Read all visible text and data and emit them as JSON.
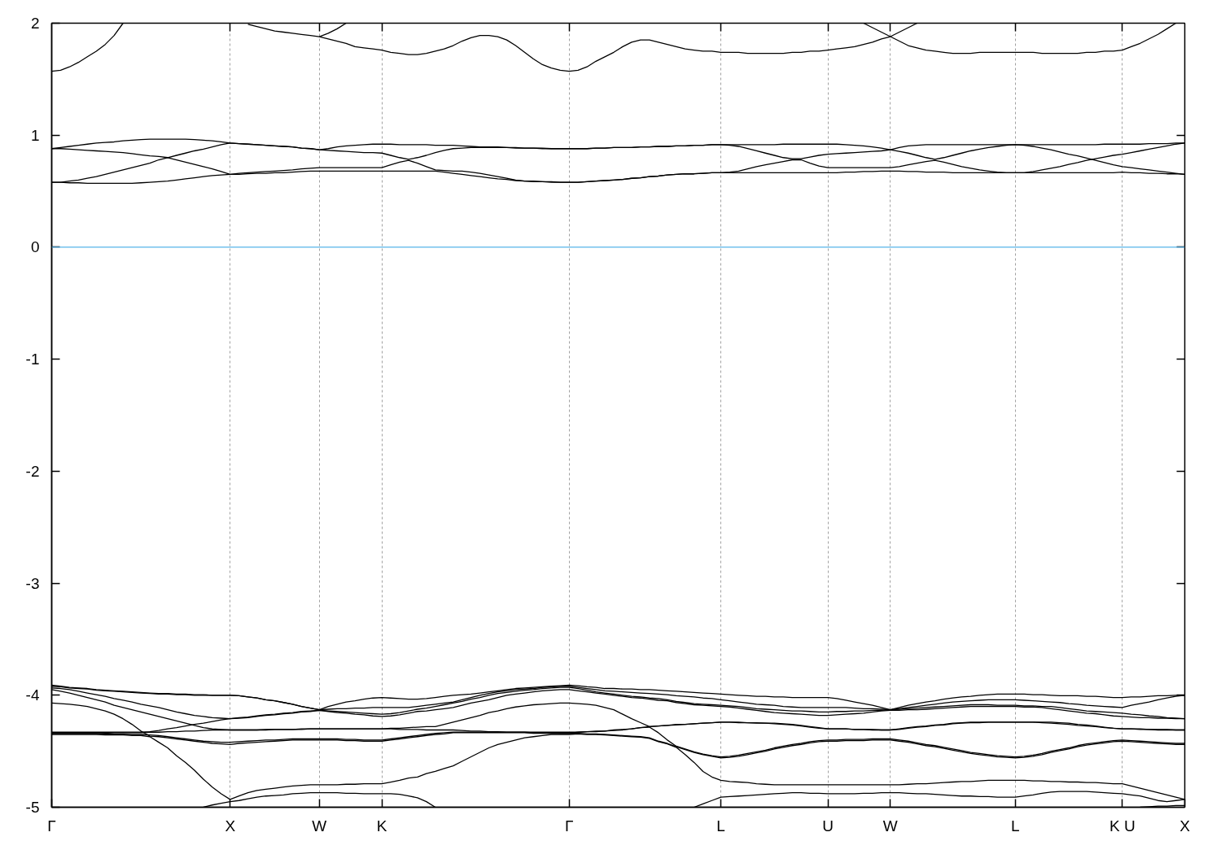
{
  "chart_data": {
    "type": "line",
    "categories": [
      "Γ",
      null,
      null,
      null,
      null,
      null,
      null,
      null,
      null,
      null,
      null,
      null,
      null,
      null,
      null,
      null,
      null,
      null,
      null,
      null,
      "X",
      null,
      null,
      null,
      null,
      null,
      null,
      null,
      null,
      null,
      "W",
      null,
      null,
      null,
      null,
      null,
      null,
      "K",
      null,
      null,
      null,
      null,
      null,
      null,
      null,
      null,
      null,
      null,
      null,
      null,
      null,
      null,
      null,
      null,
      null,
      null,
      null,
      null,
      "Γ",
      null,
      null,
      null,
      null,
      null,
      null,
      null,
      null,
      null,
      null,
      null,
      null,
      null,
      null,
      null,
      null,
      "L",
      null,
      null,
      null,
      null,
      null,
      null,
      null,
      null,
      null,
      null,
      null,
      "U",
      null,
      null,
      null,
      null,
      null,
      null,
      "W",
      null,
      null,
      null,
      null,
      null,
      null,
      null,
      null,
      null,
      null,
      null,
      null,
      null,
      "L",
      null,
      null,
      null,
      null,
      null,
      null,
      null,
      null,
      null,
      null,
      null,
      "K U",
      null,
      null,
      null,
      null,
      null,
      null,
      "X"
    ],
    "ylim": [
      -5,
      2
    ],
    "yticks": [
      -5,
      -4,
      -3,
      -2,
      -1,
      0,
      1,
      2
    ],
    "grid": "x",
    "ref_lines": [
      {
        "axis": "y",
        "value": 0,
        "color": "#56b4e9"
      }
    ],
    "series": [
      {
        "color": "#000000",
        "values": [
          1.57,
          1.58,
          1.61,
          1.65,
          1.7,
          1.75,
          1.81,
          1.89,
          2.0,
          null,
          null,
          null,
          null,
          null,
          null,
          null,
          null,
          null,
          null,
          null,
          null,
          null,
          1.99,
          1.97,
          1.95,
          1.93,
          1.92,
          1.91,
          1.9,
          1.89,
          1.88,
          1.86,
          1.84,
          1.82,
          1.79,
          1.78,
          1.77,
          1.76,
          1.74,
          1.73,
          1.72,
          1.72,
          1.73,
          1.75,
          1.77,
          1.8,
          1.84,
          1.87,
          1.89,
          1.89,
          1.88,
          1.85,
          1.8,
          1.74,
          1.68,
          1.63,
          1.6,
          1.58,
          1.57,
          1.58,
          1.61,
          1.66,
          1.7,
          1.74,
          1.79,
          1.83,
          1.85,
          1.85,
          1.83,
          1.81,
          1.79,
          1.77,
          1.76,
          1.75,
          1.75,
          1.74,
          1.74,
          1.74,
          1.73,
          1.73,
          1.73,
          1.73,
          1.73,
          1.74,
          1.74,
          1.75,
          1.75,
          1.76,
          1.77,
          1.78,
          1.79,
          1.81,
          1.83,
          1.86,
          1.88,
          1.84,
          1.8,
          1.78,
          1.76,
          1.75,
          1.74,
          1.73,
          1.73,
          1.73,
          1.74,
          1.74,
          1.74,
          1.74,
          1.74,
          1.74,
          1.74,
          1.73,
          1.73,
          1.73,
          1.73,
          1.73,
          1.74,
          1.74,
          1.75,
          1.75,
          1.76,
          1.79,
          1.82,
          1.86,
          1.9,
          1.95,
          2.0,
          null
        ]
      },
      {
        "color": "#000000",
        "values": [
          null,
          null,
          null,
          null,
          null,
          null,
          null,
          null,
          null,
          null,
          null,
          null,
          null,
          null,
          null,
          null,
          null,
          null,
          null,
          null,
          null,
          null,
          null,
          null,
          null,
          null,
          null,
          null,
          null,
          null,
          1.88,
          1.91,
          1.95,
          2.0,
          null,
          null,
          null,
          null,
          null,
          null,
          null,
          null,
          null,
          null,
          null,
          null,
          null,
          null,
          null,
          null,
          null,
          null,
          null,
          null,
          null,
          null,
          null,
          null,
          null,
          null,
          null,
          null,
          null,
          null,
          null,
          null,
          null,
          null,
          null,
          null,
          null,
          null,
          null,
          null,
          null,
          null,
          null,
          null,
          null,
          null,
          null,
          null,
          null,
          null,
          null,
          null,
          null,
          null,
          null,
          null,
          null,
          2.0,
          1.96,
          1.92,
          1.88,
          1.92,
          1.96,
          2.0,
          null,
          null,
          null,
          null,
          null,
          null,
          null,
          null,
          null,
          null,
          null,
          null,
          null,
          null,
          null,
          null,
          null,
          null,
          null,
          null,
          null,
          null,
          null,
          null,
          null,
          null,
          null,
          null,
          null,
          null
        ]
      },
      {
        "color": "#000000",
        "values": [
          0.88,
          0.89,
          0.9,
          0.91,
          0.92,
          0.93,
          0.935,
          0.94,
          0.95,
          0.955,
          0.96,
          0.965,
          0.965,
          0.965,
          0.965,
          0.965,
          0.96,
          0.955,
          0.95,
          0.94,
          0.93,
          0.925,
          0.92,
          0.915,
          0.91,
          0.905,
          0.9,
          0.895,
          0.885,
          0.88,
          0.87,
          0.88,
          0.895,
          0.905,
          0.91,
          0.915,
          0.92,
          0.92,
          0.92,
          0.915,
          0.915,
          0.915,
          0.915,
          0.91,
          0.91,
          0.91,
          0.905,
          0.9,
          0.895,
          0.895,
          0.895,
          0.89,
          0.89,
          0.885,
          0.885,
          0.885,
          0.88,
          0.88,
          0.88,
          0.88,
          0.88,
          0.885,
          0.885,
          0.89,
          0.89,
          0.89,
          0.895,
          0.895,
          0.9,
          0.9,
          0.905,
          0.905,
          0.91,
          0.91,
          0.915,
          0.915,
          0.915,
          0.915,
          0.915,
          0.915,
          0.915,
          0.915,
          0.92,
          0.92,
          0.92,
          0.92,
          0.92,
          0.92,
          0.92,
          0.915,
          0.91,
          0.905,
          0.895,
          0.885,
          0.87,
          0.89,
          0.905,
          0.91,
          0.915,
          0.915,
          0.915,
          0.915,
          0.915,
          0.915,
          0.915,
          0.915,
          0.915,
          0.915,
          0.915,
          0.915,
          0.915,
          0.915,
          0.915,
          0.915,
          0.915,
          0.915,
          0.915,
          0.915,
          0.92,
          0.92,
          0.92,
          0.92,
          0.92,
          0.925,
          0.925,
          0.925,
          0.93,
          0.93
        ]
      },
      {
        "color": "#000000",
        "values": [
          0.88,
          0.88,
          0.875,
          0.87,
          0.865,
          0.86,
          0.855,
          0.85,
          0.845,
          0.835,
          0.825,
          0.815,
          0.81,
          0.8,
          0.82,
          0.84,
          0.86,
          0.875,
          0.895,
          0.915,
          0.93,
          0.925,
          0.92,
          0.915,
          0.91,
          0.905,
          0.9,
          0.895,
          0.885,
          0.88,
          0.87,
          0.865,
          0.86,
          0.855,
          0.85,
          0.845,
          0.845,
          0.84,
          0.82,
          0.8,
          0.785,
          0.8,
          0.82,
          0.845,
          0.865,
          0.88,
          0.885,
          0.89,
          0.89,
          0.89,
          0.89,
          0.89,
          0.885,
          0.885,
          0.885,
          0.88,
          0.88,
          0.88,
          0.88,
          0.88,
          0.88,
          0.885,
          0.885,
          0.89,
          0.89,
          0.89,
          0.895,
          0.895,
          0.9,
          0.9,
          0.905,
          0.905,
          0.91,
          0.91,
          0.915,
          0.915,
          0.91,
          0.9,
          0.88,
          0.86,
          0.84,
          0.82,
          0.8,
          0.79,
          0.79,
          0.805,
          0.82,
          0.83,
          0.835,
          0.84,
          0.845,
          0.85,
          0.855,
          0.86,
          0.87,
          0.855,
          0.84,
          0.82,
          0.8,
          0.785,
          0.8,
          0.82,
          0.84,
          0.86,
          0.875,
          0.89,
          0.9,
          0.91,
          0.915,
          0.91,
          0.9,
          0.885,
          0.87,
          0.85,
          0.83,
          0.815,
          0.795,
          0.775,
          0.755,
          0.735,
          0.72,
          0.71,
          0.7,
          0.69,
          0.68,
          0.67,
          0.66,
          0.65
        ]
      },
      {
        "color": "#000000",
        "values": [
          0.58,
          0.58,
          0.59,
          0.6,
          0.615,
          0.63,
          0.65,
          0.67,
          0.69,
          0.71,
          0.73,
          0.75,
          0.78,
          0.8,
          0.78,
          0.76,
          0.74,
          0.72,
          0.7,
          0.675,
          0.65,
          0.66,
          0.665,
          0.67,
          0.675,
          0.68,
          0.685,
          0.69,
          0.7,
          0.705,
          0.71,
          0.71,
          0.71,
          0.71,
          0.71,
          0.71,
          0.71,
          0.71,
          0.735,
          0.76,
          0.775,
          0.75,
          0.72,
          0.69,
          0.685,
          0.68,
          0.68,
          0.67,
          0.66,
          0.645,
          0.63,
          0.615,
          0.6,
          0.59,
          0.59,
          0.585,
          0.585,
          0.58,
          0.58,
          0.58,
          0.585,
          0.59,
          0.595,
          0.6,
          0.605,
          0.615,
          0.62,
          0.63,
          0.635,
          0.645,
          0.65,
          0.655,
          0.655,
          0.66,
          0.665,
          0.665,
          0.67,
          0.68,
          0.7,
          0.72,
          0.735,
          0.75,
          0.765,
          0.78,
          0.78,
          0.75,
          0.725,
          0.71,
          0.71,
          0.71,
          0.71,
          0.71,
          0.71,
          0.71,
          0.71,
          0.72,
          0.735,
          0.75,
          0.765,
          0.775,
          0.76,
          0.74,
          0.72,
          0.705,
          0.69,
          0.68,
          0.67,
          0.665,
          0.665,
          0.665,
          0.675,
          0.69,
          0.705,
          0.72,
          0.74,
          0.755,
          0.775,
          0.79,
          0.805,
          0.82,
          0.83,
          0.845,
          0.86,
          0.875,
          0.89,
          0.905,
          0.92,
          0.93
        ]
      },
      {
        "color": "#000000",
        "values": [
          0.58,
          0.58,
          0.575,
          0.575,
          0.57,
          0.57,
          0.57,
          0.57,
          0.57,
          0.57,
          0.575,
          0.58,
          0.585,
          0.59,
          0.6,
          0.61,
          0.62,
          0.63,
          0.64,
          0.645,
          0.65,
          0.65,
          0.655,
          0.66,
          0.66,
          0.665,
          0.665,
          0.67,
          0.675,
          0.68,
          0.68,
          0.68,
          0.68,
          0.68,
          0.68,
          0.68,
          0.68,
          0.68,
          0.68,
          0.68,
          0.68,
          0.68,
          0.68,
          0.68,
          0.67,
          0.66,
          0.65,
          0.64,
          0.63,
          0.62,
          0.61,
          0.605,
          0.595,
          0.59,
          0.585,
          0.585,
          0.58,
          0.58,
          0.58,
          0.58,
          0.585,
          0.59,
          0.595,
          0.6,
          0.605,
          0.615,
          0.62,
          0.63,
          0.635,
          0.645,
          0.65,
          0.655,
          0.655,
          0.66,
          0.665,
          0.665,
          0.665,
          0.665,
          0.665,
          0.665,
          0.665,
          0.665,
          0.665,
          0.665,
          0.665,
          0.665,
          0.665,
          0.665,
          0.665,
          0.67,
          0.67,
          0.675,
          0.675,
          0.68,
          0.68,
          0.68,
          0.675,
          0.675,
          0.67,
          0.67,
          0.67,
          0.665,
          0.665,
          0.665,
          0.665,
          0.665,
          0.665,
          0.665,
          0.665,
          0.665,
          0.665,
          0.665,
          0.665,
          0.665,
          0.665,
          0.665,
          0.665,
          0.665,
          0.665,
          0.665,
          0.67,
          0.665,
          0.665,
          0.66,
          0.66,
          0.655,
          0.655,
          0.65
        ]
      },
      {
        "color": "#000000",
        "values": [
          -3.91,
          -3.92,
          -3.93,
          -3.935,
          -3.94,
          -3.95,
          -3.955,
          -3.96,
          -3.965,
          -3.97,
          -3.975,
          -3.98,
          -3.985,
          -3.985,
          -3.99,
          -3.99,
          -3.995,
          -3.995,
          -4.0,
          -4.0,
          -4.0,
          -4.005,
          -4.015,
          -4.025,
          -4.04,
          -4.05,
          -4.065,
          -4.08,
          -4.1,
          -4.115,
          -4.13,
          -4.1,
          -4.08,
          -4.06,
          -4.05,
          -4.035,
          -4.025,
          -4.02,
          -4.025,
          -4.03,
          -4.035,
          -4.035,
          -4.03,
          -4.02,
          -4.01,
          -4.0,
          -3.995,
          -3.99,
          -3.98,
          -3.97,
          -3.96,
          -3.95,
          -3.94,
          -3.935,
          -3.93,
          -3.925,
          -3.92,
          -3.915,
          -3.91,
          -3.915,
          -3.925,
          -3.93,
          -3.94,
          -3.94,
          -3.945,
          -3.945,
          -3.95,
          -3.95,
          -3.955,
          -3.96,
          -3.965,
          -3.97,
          -3.975,
          -3.98,
          -3.985,
          -3.99,
          -3.995,
          -4.0,
          -4.005,
          -4.01,
          -4.01,
          -4.015,
          -4.015,
          -4.02,
          -4.02,
          -4.02,
          -4.02,
          -4.02,
          -4.03,
          -4.045,
          -4.06,
          -4.075,
          -4.09,
          -4.11,
          -4.13,
          -4.11,
          -4.09,
          -4.075,
          -4.06,
          -4.05,
          -4.035,
          -4.025,
          -4.015,
          -4.01,
          -4.0,
          -3.995,
          -3.99,
          -3.99,
          -3.99,
          -3.99,
          -3.995,
          -3.995,
          -4.0,
          -4.005,
          -4.005,
          -4.005,
          -4.01,
          -4.01,
          -4.015,
          -4.02,
          -4.02,
          -4.015,
          -4.015,
          -4.01,
          -4.005,
          -4.005,
          -4.0,
          -4.0
        ]
      },
      {
        "color": "#000000",
        "values": [
          -3.92,
          -3.925,
          -3.935,
          -3.94,
          -3.945,
          -3.955,
          -3.96,
          -3.965,
          -3.97,
          -3.975,
          -3.98,
          -3.985,
          -3.99,
          -3.99,
          -3.995,
          -3.995,
          -4.0,
          -4.0,
          -4.0,
          -4.0,
          -4.0,
          -4.005,
          -4.015,
          -4.025,
          -4.04,
          -4.05,
          -4.065,
          -4.08,
          -4.1,
          -4.115,
          -4.13,
          -4.125,
          -4.12,
          -4.12,
          -4.115,
          -4.115,
          -4.11,
          -4.11,
          -4.11,
          -4.11,
          -4.11,
          -4.1,
          -4.09,
          -4.08,
          -4.07,
          -4.06,
          -4.04,
          -4.02,
          -4.0,
          -3.985,
          -3.97,
          -3.96,
          -3.95,
          -3.945,
          -3.94,
          -3.93,
          -3.925,
          -3.92,
          -3.92,
          -3.93,
          -3.94,
          -3.95,
          -3.96,
          -3.965,
          -3.97,
          -3.975,
          -3.98,
          -3.985,
          -3.99,
          -3.995,
          -4.005,
          -4.01,
          -4.015,
          -4.025,
          -4.03,
          -4.04,
          -4.05,
          -4.06,
          -4.07,
          -4.08,
          -4.085,
          -4.09,
          -4.1,
          -4.105,
          -4.11,
          -4.11,
          -4.11,
          -4.11,
          -4.11,
          -4.11,
          -4.115,
          -4.12,
          -4.12,
          -4.125,
          -4.13,
          -4.125,
          -4.12,
          -4.115,
          -4.11,
          -4.105,
          -4.1,
          -4.095,
          -4.09,
          -4.085,
          -4.085,
          -4.085,
          -4.09,
          -4.09,
          -4.09,
          -4.095,
          -4.095,
          -4.1,
          -4.1,
          -4.11,
          -4.12,
          -4.13,
          -4.14,
          -4.145,
          -4.15,
          -4.155,
          -4.16,
          -4.17,
          -4.175,
          -4.185,
          -4.19,
          -4.2,
          -4.205,
          -4.21
        ]
      },
      {
        "color": "#000000",
        "values": [
          -3.935,
          -3.94,
          -3.95,
          -3.965,
          -3.98,
          -3.995,
          -4.01,
          -4.03,
          -4.045,
          -4.06,
          -4.08,
          -4.095,
          -4.11,
          -4.13,
          -4.15,
          -4.165,
          -4.18,
          -4.19,
          -4.2,
          -4.205,
          -4.21,
          -4.2,
          -4.195,
          -4.185,
          -4.175,
          -4.17,
          -4.16,
          -4.155,
          -4.145,
          -4.14,
          -4.135,
          -4.14,
          -4.145,
          -4.15,
          -4.155,
          -4.16,
          -4.165,
          -4.17,
          -4.165,
          -4.155,
          -4.14,
          -4.125,
          -4.115,
          -4.1,
          -4.085,
          -4.07,
          -4.055,
          -4.035,
          -4.02,
          -4.0,
          -3.985,
          -3.975,
          -3.965,
          -3.955,
          -3.95,
          -3.94,
          -3.935,
          -3.93,
          -3.93,
          -3.94,
          -3.955,
          -3.97,
          -3.98,
          -3.99,
          -4.0,
          -4.01,
          -4.015,
          -4.025,
          -4.03,
          -4.04,
          -4.055,
          -4.065,
          -4.075,
          -4.08,
          -4.085,
          -4.09,
          -4.095,
          -4.1,
          -4.11,
          -4.12,
          -4.125,
          -4.13,
          -4.135,
          -4.14,
          -4.14,
          -4.145,
          -4.15,
          -4.15,
          -4.145,
          -4.145,
          -4.14,
          -4.14,
          -4.135,
          -4.135,
          -4.13,
          -4.12,
          -4.11,
          -4.1,
          -4.09,
          -4.08,
          -4.07,
          -4.06,
          -4.055,
          -4.05,
          -4.045,
          -4.04,
          -4.04,
          -4.04,
          -4.04,
          -4.045,
          -4.05,
          -4.055,
          -4.06,
          -4.065,
          -4.075,
          -4.08,
          -4.09,
          -4.095,
          -4.1,
          -4.105,
          -4.11,
          -4.09,
          -4.075,
          -4.06,
          -4.04,
          -4.025,
          -4.01,
          -4.0
        ]
      },
      {
        "color": "#000000",
        "values": [
          -3.95,
          -3.965,
          -3.98,
          -4.0,
          -4.02,
          -4.04,
          -4.06,
          -4.09,
          -4.11,
          -4.13,
          -4.15,
          -4.17,
          -4.19,
          -4.21,
          -4.23,
          -4.25,
          -4.27,
          -4.29,
          -4.3,
          -4.305,
          -4.31,
          -4.31,
          -4.31,
          -4.31,
          -4.305,
          -4.305,
          -4.305,
          -4.305,
          -4.3,
          -4.3,
          -4.3,
          -4.3,
          -4.3,
          -4.3,
          -4.3,
          -4.3,
          -4.3,
          -4.3,
          -4.295,
          -4.295,
          -4.29,
          -4.285,
          -4.28,
          -4.28,
          -4.26,
          -4.24,
          -4.22,
          -4.2,
          -4.18,
          -4.155,
          -4.14,
          -4.12,
          -4.105,
          -4.095,
          -4.085,
          -4.08,
          -4.075,
          -4.07,
          -4.07,
          -4.075,
          -4.08,
          -4.09,
          -4.11,
          -4.13,
          -4.17,
          -4.21,
          -4.245,
          -4.28,
          -4.275,
          -4.27,
          -4.26,
          -4.26,
          -4.255,
          -4.25,
          -4.245,
          -4.24,
          -4.24,
          -4.24,
          -4.245,
          -4.245,
          -4.25,
          -4.25,
          -4.255,
          -4.26,
          -4.27,
          -4.28,
          -4.29,
          -4.3,
          -4.3,
          -4.3,
          -4.305,
          -4.305,
          -4.305,
          -4.31,
          -4.31,
          -4.3,
          -4.29,
          -4.28,
          -4.275,
          -4.265,
          -4.26,
          -4.25,
          -4.245,
          -4.24,
          -4.24,
          -4.24,
          -4.24,
          -4.24,
          -4.24,
          -4.24,
          -4.24,
          -4.24,
          -4.24,
          -4.245,
          -4.25,
          -4.26,
          -4.265,
          -4.275,
          -4.285,
          -4.295,
          -4.3,
          -4.3,
          -4.3,
          -4.305,
          -4.305,
          -4.305,
          -4.31,
          -4.31
        ]
      },
      {
        "color": "#000000",
        "values": [
          -4.33,
          -4.33,
          -4.33,
          -4.33,
          -4.33,
          -4.33,
          -4.33,
          -4.33,
          -4.33,
          -4.33,
          -4.33,
          -4.325,
          -4.315,
          -4.3,
          -4.29,
          -4.275,
          -4.26,
          -4.25,
          -4.235,
          -4.22,
          -4.21,
          -4.205,
          -4.2,
          -4.19,
          -4.18,
          -4.175,
          -4.165,
          -4.16,
          -4.15,
          -4.145,
          -4.135,
          -4.145,
          -4.155,
          -4.16,
          -4.17,
          -4.175,
          -4.185,
          -4.19,
          -4.185,
          -4.175,
          -4.16,
          -4.145,
          -4.14,
          -4.13,
          -4.12,
          -4.11,
          -4.09,
          -4.07,
          -4.055,
          -4.04,
          -4.02,
          -4.0,
          -3.99,
          -3.98,
          -3.97,
          -3.96,
          -3.955,
          -3.95,
          -3.95,
          -3.96,
          -3.97,
          -3.98,
          -3.99,
          -4.0,
          -4.01,
          -4.02,
          -4.025,
          -4.035,
          -4.045,
          -4.05,
          -4.065,
          -4.075,
          -4.085,
          -4.09,
          -4.095,
          -4.1,
          -4.105,
          -4.115,
          -4.125,
          -4.135,
          -4.145,
          -4.155,
          -4.16,
          -4.165,
          -4.17,
          -4.175,
          -4.18,
          -4.18,
          -4.175,
          -4.17,
          -4.165,
          -4.16,
          -4.15,
          -4.14,
          -4.135,
          -4.135,
          -4.13,
          -4.13,
          -4.125,
          -4.12,
          -4.115,
          -4.11,
          -4.105,
          -4.1,
          -4.1,
          -4.1,
          -4.1,
          -4.1,
          -4.1,
          -4.105,
          -4.105,
          -4.11,
          -4.12,
          -4.13,
          -4.14,
          -4.15,
          -4.16,
          -4.165,
          -4.175,
          -4.185,
          -4.19,
          -4.195,
          -4.2,
          -4.2,
          -4.205,
          -4.205,
          -4.21,
          -4.21
        ]
      },
      {
        "color": "#000000",
        "values": [
          -4.07,
          -4.075,
          -4.08,
          -4.09,
          -4.1,
          -4.12,
          -4.14,
          -4.17,
          -4.21,
          -4.26,
          -4.32,
          -4.365,
          -4.37,
          -4.38,
          -4.39,
          -4.4,
          -4.41,
          -4.42,
          -4.43,
          -4.435,
          -4.44,
          -4.43,
          -4.425,
          -4.42,
          -4.415,
          -4.41,
          -4.405,
          -4.4,
          -4.4,
          -4.4,
          -4.4,
          -4.4,
          -4.4,
          -4.405,
          -4.405,
          -4.41,
          -4.41,
          -4.41,
          -4.4,
          -4.39,
          -4.38,
          -4.37,
          -4.36,
          -4.35,
          -4.345,
          -4.335,
          -4.335,
          -4.335,
          -4.335,
          -4.335,
          -4.335,
          -4.335,
          -4.335,
          -4.335,
          -4.34,
          -4.34,
          -4.34,
          -4.34,
          -4.34,
          -4.34,
          -4.345,
          -4.345,
          -4.35,
          -4.355,
          -4.36,
          -4.365,
          -4.37,
          -4.38,
          -4.41,
          -4.43,
          -4.46,
          -4.485,
          -4.51,
          -4.53,
          -4.545,
          -4.56,
          -4.555,
          -4.545,
          -4.53,
          -4.515,
          -4.5,
          -4.48,
          -4.465,
          -4.45,
          -4.44,
          -4.425,
          -4.415,
          -4.41,
          -4.41,
          -4.405,
          -4.405,
          -4.405,
          -4.4,
          -4.4,
          -4.4,
          -4.41,
          -4.42,
          -4.435,
          -4.45,
          -4.46,
          -4.475,
          -4.49,
          -4.505,
          -4.52,
          -4.53,
          -4.54,
          -4.55,
          -4.555,
          -4.56,
          -4.555,
          -4.545,
          -4.53,
          -4.51,
          -4.495,
          -4.48,
          -4.46,
          -4.445,
          -4.435,
          -4.425,
          -4.415,
          -4.41,
          -4.415,
          -4.42,
          -4.425,
          -4.43,
          -4.435,
          -4.44,
          -4.44
        ]
      },
      {
        "color": "#000000",
        "values": [
          -4.34,
          -4.34,
          -4.34,
          -4.34,
          -4.34,
          -4.34,
          -4.34,
          -4.335,
          -4.335,
          -4.335,
          -4.335,
          -4.33,
          -4.33,
          -4.325,
          -4.325,
          -4.32,
          -4.32,
          -4.315,
          -4.31,
          -4.31,
          -4.31,
          -4.31,
          -4.31,
          -4.31,
          -4.31,
          -4.305,
          -4.305,
          -4.305,
          -4.305,
          -4.3,
          -4.3,
          -4.3,
          -4.3,
          -4.3,
          -4.3,
          -4.3,
          -4.3,
          -4.3,
          -4.3,
          -4.305,
          -4.305,
          -4.305,
          -4.31,
          -4.31,
          -4.31,
          -4.31,
          -4.315,
          -4.32,
          -4.32,
          -4.325,
          -4.325,
          -4.33,
          -4.33,
          -4.33,
          -4.33,
          -4.33,
          -4.33,
          -4.33,
          -4.33,
          -4.33,
          -4.325,
          -4.32,
          -4.32,
          -4.31,
          -4.305,
          -4.3,
          -4.29,
          -4.28,
          -4.275,
          -4.27,
          -4.265,
          -4.26,
          -4.255,
          -4.25,
          -4.245,
          -4.24,
          -4.24,
          -4.245,
          -4.245,
          -4.25,
          -4.25,
          -4.255,
          -4.26,
          -4.265,
          -4.275,
          -4.285,
          -4.295,
          -4.3,
          -4.3,
          -4.3,
          -4.305,
          -4.305,
          -4.31,
          -4.31,
          -4.31,
          -4.305,
          -4.295,
          -4.285,
          -4.28,
          -4.27,
          -4.265,
          -4.255,
          -4.25,
          -4.245,
          -4.245,
          -4.24,
          -4.24,
          -4.24,
          -4.24,
          -4.24,
          -4.24,
          -4.245,
          -4.25,
          -4.255,
          -4.26,
          -4.27,
          -4.275,
          -4.28,
          -4.29,
          -4.295,
          -4.3,
          -4.3,
          -4.305,
          -4.305,
          -4.31,
          -4.31,
          -4.31,
          -4.31
        ]
      },
      {
        "color": "#000000",
        "values": [
          -4.34,
          -4.34,
          -4.34,
          -4.34,
          -4.34,
          -4.34,
          -4.345,
          -4.345,
          -4.345,
          -4.35,
          -4.35,
          -4.355,
          -4.36,
          -4.37,
          -4.38,
          -4.39,
          -4.4,
          -4.41,
          -4.415,
          -4.42,
          -4.42,
          -4.415,
          -4.41,
          -4.405,
          -4.4,
          -4.4,
          -4.395,
          -4.39,
          -4.39,
          -4.39,
          -4.39,
          -4.39,
          -4.39,
          -4.395,
          -4.395,
          -4.4,
          -4.4,
          -4.4,
          -4.39,
          -4.38,
          -4.37,
          -4.36,
          -4.35,
          -4.34,
          -4.335,
          -4.33,
          -4.33,
          -4.33,
          -4.33,
          -4.33,
          -4.33,
          -4.33,
          -4.33,
          -4.33,
          -4.335,
          -4.335,
          -4.335,
          -4.34,
          -4.34,
          -4.33,
          -4.325,
          -4.325,
          -4.32,
          -4.315,
          -4.31,
          -4.3,
          -4.29,
          -4.285,
          -4.335,
          -4.4,
          -4.455,
          -4.48,
          -4.505,
          -4.525,
          -4.54,
          -4.55,
          -4.545,
          -4.535,
          -4.52,
          -4.505,
          -4.49,
          -4.47,
          -4.455,
          -4.44,
          -4.43,
          -4.415,
          -4.405,
          -4.4,
          -4.4,
          -4.395,
          -4.395,
          -4.395,
          -4.39,
          -4.39,
          -4.39,
          -4.4,
          -4.41,
          -4.425,
          -4.44,
          -4.45,
          -4.465,
          -4.48,
          -4.495,
          -4.51,
          -4.52,
          -4.53,
          -4.54,
          -4.545,
          -4.55,
          -4.545,
          -4.535,
          -4.52,
          -4.5,
          -4.485,
          -4.47,
          -4.45,
          -4.435,
          -4.425,
          -4.415,
          -4.405,
          -4.4,
          -4.405,
          -4.41,
          -4.415,
          -4.42,
          -4.425,
          -4.43,
          -4.43
        ]
      },
      {
        "color": "#000000",
        "values": [
          -4.35,
          -4.35,
          -4.35,
          -4.35,
          -4.35,
          -4.35,
          -4.355,
          -4.355,
          -4.355,
          -4.36,
          -4.36,
          -4.37,
          -4.42,
          -4.47,
          -4.54,
          -4.6,
          -4.67,
          -4.75,
          -4.82,
          -4.88,
          -4.93,
          -4.9,
          -4.87,
          -4.85,
          -4.84,
          -4.83,
          -4.82,
          -4.81,
          -4.805,
          -4.8,
          -4.8,
          -4.8,
          -4.8,
          -4.795,
          -4.795,
          -4.79,
          -4.79,
          -4.79,
          -4.775,
          -4.76,
          -4.74,
          -4.73,
          -4.7,
          -4.68,
          -4.655,
          -4.63,
          -4.59,
          -4.55,
          -4.51,
          -4.47,
          -4.44,
          -4.42,
          -4.4,
          -4.38,
          -4.37,
          -4.36,
          -4.35,
          -4.35,
          -4.35,
          -4.345,
          -4.35,
          -4.35,
          -4.355,
          -4.36,
          -4.365,
          -4.37,
          -4.375,
          -4.385,
          -4.415,
          -4.435,
          -4.465,
          -4.53,
          -4.6,
          -4.68,
          -4.73,
          -4.76,
          -4.77,
          -4.775,
          -4.78,
          -4.79,
          -4.795,
          -4.8,
          -4.8,
          -4.8,
          -4.8,
          -4.8,
          -4.8,
          -4.8,
          -4.8,
          -4.8,
          -4.8,
          -4.8,
          -4.8,
          -4.8,
          -4.8,
          -4.8,
          -4.795,
          -4.79,
          -4.79,
          -4.785,
          -4.78,
          -4.775,
          -4.77,
          -4.77,
          -4.765,
          -4.76,
          -4.76,
          -4.76,
          -4.76,
          -4.76,
          -4.765,
          -4.765,
          -4.77,
          -4.77,
          -4.775,
          -4.775,
          -4.78,
          -4.78,
          -4.785,
          -4.79,
          -4.79,
          -4.81,
          -4.83,
          -4.85,
          -4.87,
          -4.89,
          -4.91,
          -4.93
        ]
      },
      {
        "color": "#000000",
        "values": [
          null,
          null,
          null,
          null,
          null,
          null,
          null,
          null,
          null,
          null,
          null,
          null,
          null,
          null,
          null,
          null,
          null,
          -5.0,
          -4.98,
          -4.965,
          -4.95,
          -4.94,
          -4.925,
          -4.91,
          -4.9,
          -4.895,
          -4.89,
          -4.88,
          -4.875,
          -4.87,
          -4.87,
          -4.87,
          -4.87,
          -4.875,
          -4.875,
          -4.88,
          -4.88,
          -4.88,
          -4.88,
          -4.885,
          -4.9,
          -4.915,
          -4.95,
          -5.0,
          null,
          null,
          null,
          null,
          null,
          null,
          null,
          null,
          null,
          null,
          null,
          null,
          null,
          null,
          null,
          null,
          null,
          null,
          null,
          null,
          null,
          null,
          null,
          null,
          null,
          null,
          null,
          null,
          -5.0,
          -4.97,
          -4.94,
          -4.91,
          -4.905,
          -4.9,
          -4.895,
          -4.89,
          -4.885,
          -4.88,
          -4.875,
          -4.87,
          -4.87,
          -4.875,
          -4.875,
          -4.88,
          -4.88,
          -4.88,
          -4.88,
          -4.875,
          -4.875,
          -4.87,
          -4.87,
          -4.87,
          -4.875,
          -4.88,
          -4.88,
          -4.885,
          -4.89,
          -4.895,
          -4.9,
          -4.9,
          -4.905,
          -4.905,
          -4.91,
          -4.91,
          -4.91,
          -4.9,
          -4.89,
          -4.875,
          -4.865,
          -4.86,
          -4.86,
          -4.86,
          -4.86,
          -4.865,
          -4.87,
          -4.875,
          -4.88,
          -4.89,
          -4.9,
          -4.92,
          -4.94,
          -4.95,
          -4.94,
          -4.93
        ]
      },
      {
        "color": "#000000",
        "values": [
          null,
          null,
          null,
          null,
          null,
          null,
          null,
          null,
          null,
          null,
          null,
          null,
          null,
          null,
          null,
          null,
          null,
          null,
          null,
          null,
          null,
          null,
          null,
          null,
          null,
          null,
          null,
          null,
          null,
          null,
          null,
          null,
          null,
          null,
          null,
          null,
          null,
          null,
          null,
          null,
          null,
          null,
          null,
          null,
          null,
          null,
          null,
          null,
          null,
          null,
          null,
          null,
          null,
          null,
          null,
          null,
          null,
          null,
          null,
          null,
          null,
          null,
          null,
          null,
          null,
          null,
          null,
          null,
          null,
          null,
          null,
          null,
          null,
          null,
          null,
          null,
          null,
          null,
          null,
          null,
          null,
          null,
          null,
          null,
          null,
          null,
          null,
          null,
          null,
          null,
          null,
          null,
          null,
          null,
          null,
          null,
          null,
          null,
          null,
          null,
          null,
          null,
          null,
          null,
          null,
          null,
          null,
          null,
          null,
          null,
          null,
          null,
          null,
          null,
          null,
          null,
          null,
          null,
          null,
          null,
          null,
          null,
          -5.0,
          -4.995,
          -4.99,
          -4.99,
          -4.985,
          -4.985
        ]
      }
    ]
  }
}
